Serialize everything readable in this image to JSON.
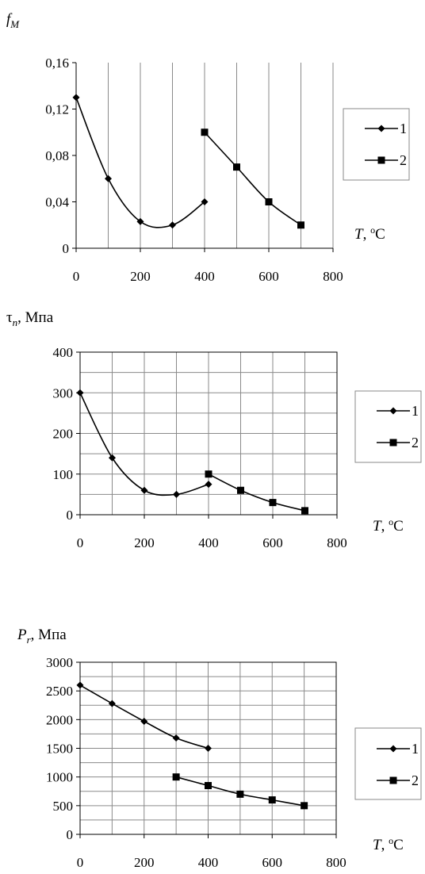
{
  "chart_data": [
    {
      "type": "line",
      "title": "",
      "ylabel": {
        "main": "f",
        "sub": "M",
        "unit": ""
      },
      "xlabel": {
        "main": "T",
        "unit_sup": "o",
        "unit": "C"
      },
      "xlim": [
        0,
        800
      ],
      "ylim": [
        0,
        0.16
      ],
      "xticks": [
        0,
        200,
        400,
        600,
        800
      ],
      "xtick_labels": [
        "0",
        "200",
        "400",
        "600",
        "800"
      ],
      "yticks": [
        0,
        0.04,
        0.08,
        0.12,
        0.16
      ],
      "ytick_labels": [
        "0",
        "0,04",
        "0,08",
        "0,12",
        "0,16"
      ],
      "vgrid_step": 100,
      "hgrid": false,
      "legend": "right",
      "series": [
        {
          "name": "1",
          "marker": "diamond",
          "x": [
            0,
            100,
            200,
            300,
            400
          ],
          "y": [
            0.13,
            0.06,
            0.023,
            0.02,
            0.04
          ]
        },
        {
          "name": "2",
          "marker": "square",
          "x": [
            400,
            500,
            600,
            700
          ],
          "y": [
            0.1,
            0.07,
            0.04,
            0.02
          ]
        }
      ]
    },
    {
      "type": "line",
      "title": "",
      "ylabel": {
        "main": "τ",
        "sub": "n",
        "unit": ", Мпа"
      },
      "xlabel": {
        "main": "T",
        "unit_sup": "o",
        "unit": "C"
      },
      "xlim": [
        0,
        800
      ],
      "ylim": [
        0,
        400
      ],
      "xticks": [
        0,
        200,
        400,
        600,
        800
      ],
      "xtick_labels": [
        "0",
        "200",
        "400",
        "600",
        "800"
      ],
      "yticks": [
        0,
        100,
        200,
        300,
        400
      ],
      "ytick_labels": [
        "0",
        "100",
        "200",
        "300",
        "400"
      ],
      "vgrid_step": 100,
      "hgrid": true,
      "hgrid_step": 50,
      "legend": "right",
      "series": [
        {
          "name": "1",
          "marker": "diamond",
          "x": [
            0,
            100,
            200,
            300,
            400
          ],
          "y": [
            300,
            140,
            60,
            50,
            75
          ]
        },
        {
          "name": "2",
          "marker": "square",
          "x": [
            400,
            500,
            600,
            700
          ],
          "y": [
            100,
            60,
            30,
            10
          ]
        }
      ]
    },
    {
      "type": "line",
      "title": "",
      "ylabel": {
        "main": "P",
        "sub": "r",
        "unit": ", Мпа"
      },
      "xlabel": {
        "main": "T",
        "unit_sup": "o",
        "unit": "C"
      },
      "xlim": [
        0,
        800
      ],
      "ylim": [
        0,
        3000
      ],
      "xticks": [
        0,
        200,
        400,
        600,
        800
      ],
      "xtick_labels": [
        "0",
        "200",
        "400",
        "600",
        "800"
      ],
      "yticks": [
        0,
        500,
        1000,
        1500,
        2000,
        2500,
        3000
      ],
      "ytick_labels": [
        "0",
        "500",
        "1000",
        "1500",
        "2000",
        "2500",
        "3000"
      ],
      "vgrid_step": 100,
      "hgrid": true,
      "hgrid_step": 250,
      "legend": "right",
      "series": [
        {
          "name": "1",
          "marker": "diamond",
          "x": [
            0,
            100,
            200,
            300,
            400
          ],
          "y": [
            2600,
            2280,
            1970,
            1680,
            1500
          ]
        },
        {
          "name": "2",
          "marker": "square",
          "x": [
            300,
            400,
            500,
            600,
            700
          ],
          "y": [
            1000,
            850,
            700,
            600,
            500
          ]
        }
      ]
    }
  ]
}
